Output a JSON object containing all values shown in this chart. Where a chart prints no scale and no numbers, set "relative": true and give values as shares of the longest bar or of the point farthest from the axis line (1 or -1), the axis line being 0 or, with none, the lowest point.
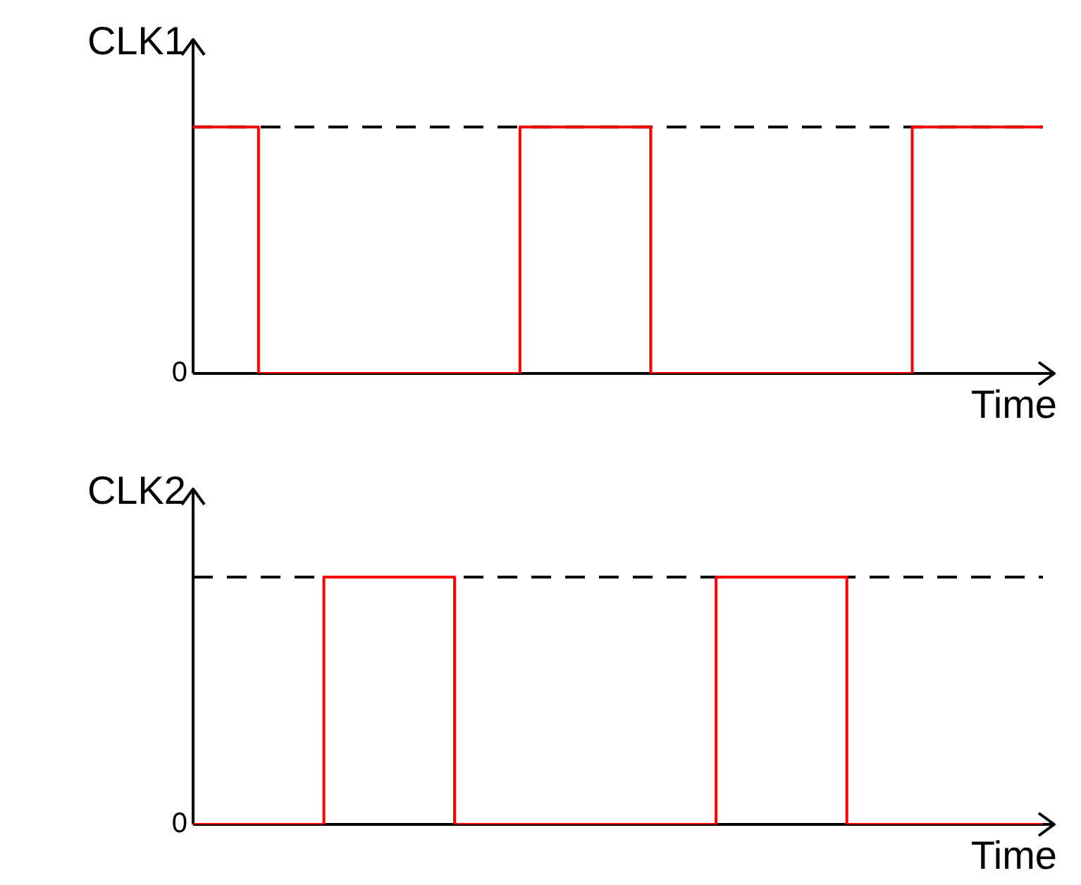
{
  "chart_data": [
    {
      "type": "step",
      "ylabel": "CLK1",
      "xlabel": "Time",
      "relative": true,
      "legend": false,
      "categories": [
        null,
        null,
        null,
        null,
        null,
        null,
        null,
        null,
        null,
        null,
        null,
        null,
        null,
        null
      ],
      "series": [
        {
          "color": "#ff0000",
          "values": [
            1,
            1,
            0,
            0,
            0,
            0,
            1,
            1,
            0,
            0,
            0,
            0,
            1,
            1
          ]
        }
      ],
      "ref_lines": [
        {
          "axis": "y",
          "value": 1,
          "color": "#000000",
          "line_style": "dashed"
        }
      ],
      "annotations": [
        "0"
      ]
    },
    {
      "type": "step",
      "ylabel": "CLK2",
      "xlabel": "Time",
      "relative": true,
      "legend": false,
      "categories": [
        null,
        null,
        null,
        null,
        null,
        null,
        null,
        null,
        null,
        null,
        null,
        null,
        null,
        null
      ],
      "series": [
        {
          "color": "#ff0000",
          "values": [
            0,
            0,
            0,
            1,
            1,
            0,
            0,
            0,
            0,
            1,
            1,
            0,
            0,
            0
          ]
        }
      ],
      "ref_lines": [
        {
          "axis": "y",
          "value": 1,
          "color": "#000000",
          "line_style": "dashed"
        }
      ],
      "annotations": [
        "0"
      ]
    }
  ]
}
